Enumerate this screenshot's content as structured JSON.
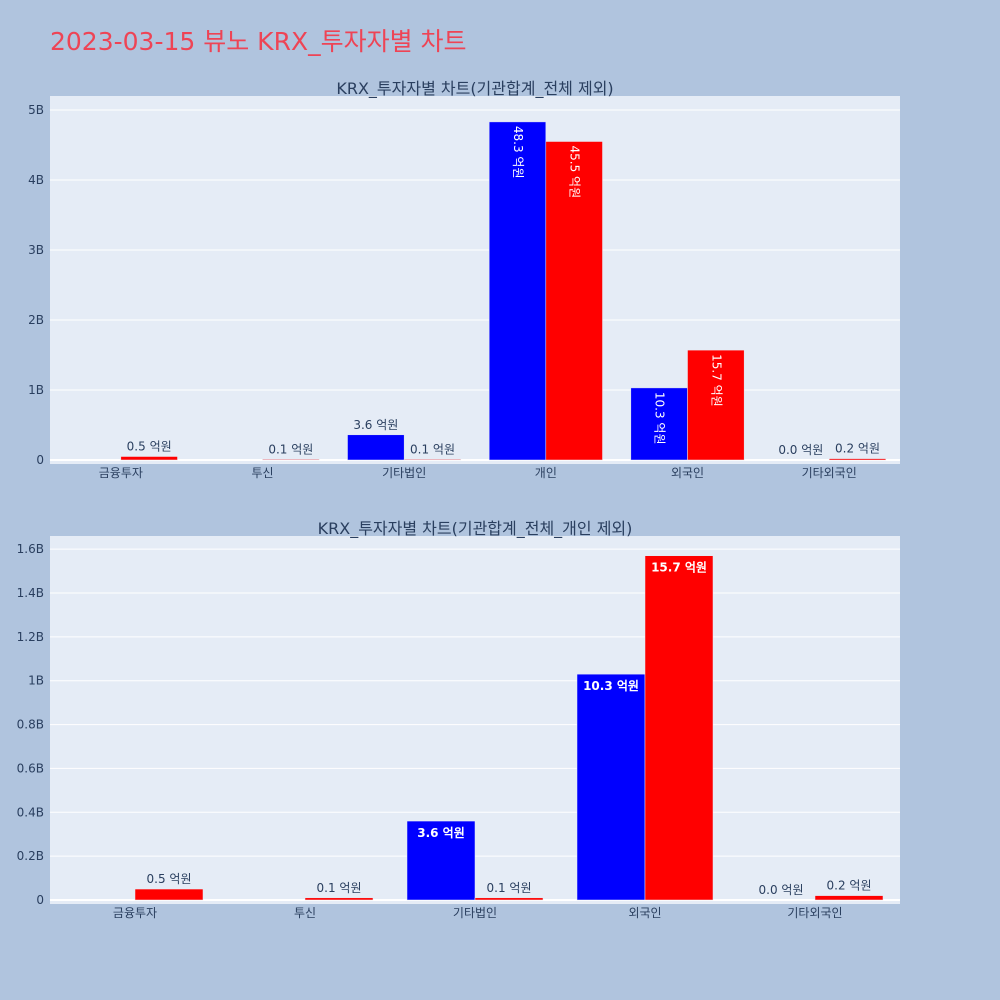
{
  "page": {
    "title": "2023-03-15 뷰노 KRX_투자자별 차트"
  },
  "chart_data": [
    {
      "type": "bar",
      "title": "KRX_투자자별 차트(기관합계_전체 제외)",
      "categories": [
        "금융투자",
        "투신",
        "기타법인",
        "개인",
        "외국인",
        "기타외국인"
      ],
      "series": [
        {
          "color": "#0000ff",
          "values": [
            0,
            0,
            0.36,
            4.83,
            1.03,
            0.0
          ],
          "labels": [
            "",
            "",
            "3.6 억원",
            "48.3 억원",
            "10.3 억원",
            "0.0 억원"
          ]
        },
        {
          "color": "#ff0000",
          "values": [
            0.05,
            0.01,
            0.01,
            4.55,
            1.57,
            0.02
          ],
          "labels": [
            "0.5 억원",
            "0.1 억원",
            "0.1 억원",
            "45.5 억원",
            "15.7 억원",
            "0.2 억원"
          ]
        }
      ],
      "yticks": [
        0,
        1,
        2,
        3,
        4,
        5
      ],
      "ytick_labels": [
        "0",
        "1B",
        "2B",
        "3B",
        "4B",
        "5B"
      ],
      "ylim": [
        0,
        5.2
      ],
      "unit": "billions"
    },
    {
      "type": "bar",
      "title": "KRX_투자자별 차트(기관합계_전체_개인 제외)",
      "categories": [
        "금융투자",
        "투신",
        "기타법인",
        "외국인",
        "기타외국인"
      ],
      "series": [
        {
          "color": "#0000ff",
          "values": [
            0,
            0,
            0.36,
            1.03,
            0.0
          ],
          "labels": [
            "",
            "",
            "3.6 억원",
            "10.3 억원",
            "0.0 억원"
          ]
        },
        {
          "color": "#ff0000",
          "values": [
            0.05,
            0.01,
            0.01,
            1.57,
            0.02
          ],
          "labels": [
            "0.5 억원",
            "0.1 억원",
            "0.1 억원",
            "15.7 억원",
            "0.2 억원"
          ]
        }
      ],
      "yticks": [
        0,
        0.2,
        0.4,
        0.6,
        0.8,
        1.0,
        1.2,
        1.4,
        1.6
      ],
      "ytick_labels": [
        "0",
        "0.2B",
        "0.4B",
        "0.6B",
        "0.8B",
        "1B",
        "1.2B",
        "1.4B",
        "1.6B"
      ],
      "ylim": [
        0,
        1.66
      ],
      "unit": "billions"
    }
  ]
}
